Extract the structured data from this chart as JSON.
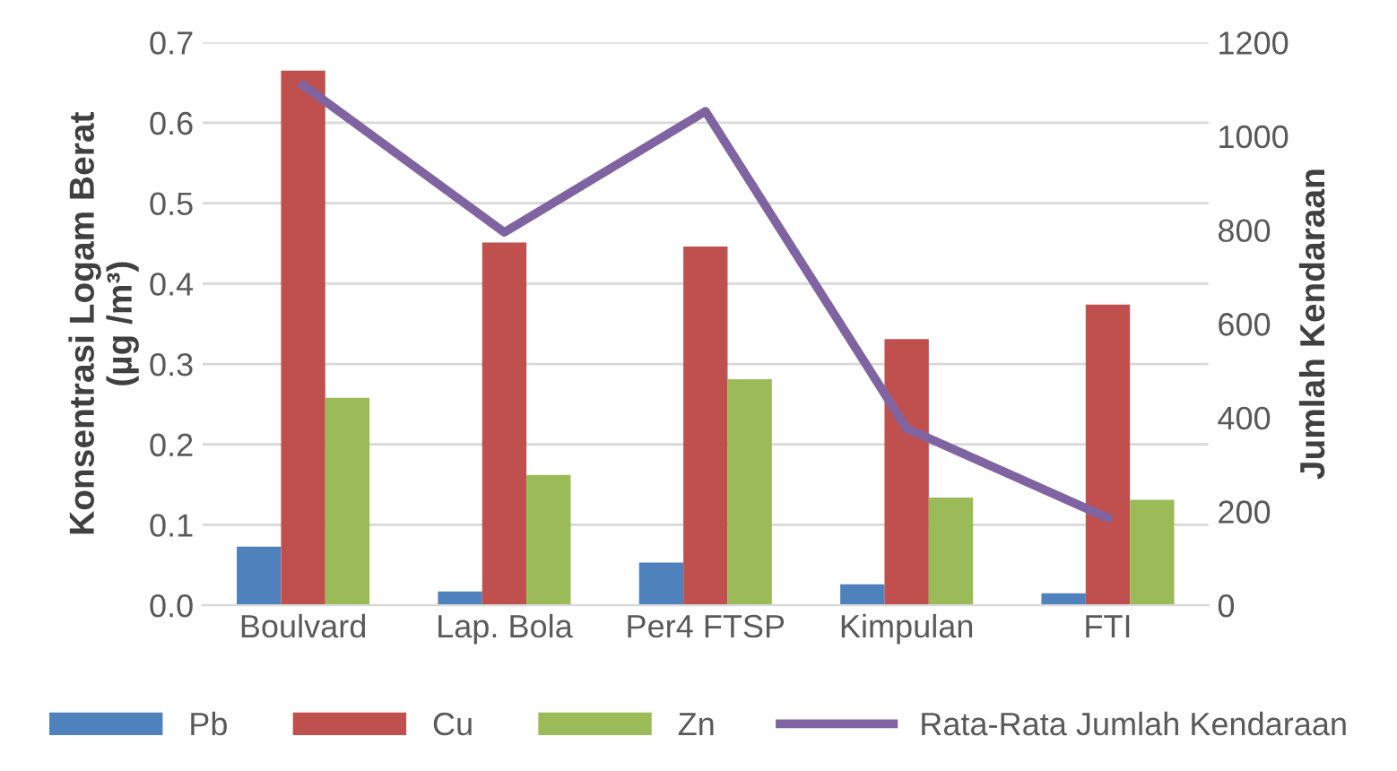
{
  "chart_data": {
    "type": "bar",
    "ylabel": "Konsentrasi Logam Berat\n(µg /m³)",
    "y2label": "Jumlah Kendaraan",
    "categories": [
      "Boulvard",
      "Lap. Bola",
      "Per4 FTSP",
      "Kimpulan",
      "FTI"
    ],
    "series": [
      {
        "name": "Pb",
        "color": "#4f81bd",
        "values": [
          0.073,
          0.017,
          0.053,
          0.026,
          0.015
        ]
      },
      {
        "name": "Cu",
        "color": "#c0504d",
        "values": [
          0.665,
          0.451,
          0.446,
          0.331,
          0.374
        ]
      },
      {
        "name": "Zn",
        "color": "#9bbb59",
        "values": [
          0.258,
          0.162,
          0.281,
          0.134,
          0.131
        ]
      },
      {
        "name": "Rata-Rata Jumlah Kendaraan",
        "color": "#8064a2",
        "type": "line",
        "axis": "y2",
        "values": [
          1109,
          795,
          1053,
          377,
          186
        ]
      }
    ],
    "ylim": [
      0,
      0.7
    ],
    "yticks": [
      {
        "value": 0,
        "label": "0.0"
      },
      0.1,
      0.2,
      0.3,
      0.4,
      0.5,
      0.6,
      0.7
    ],
    "y2lim": [
      0,
      1200
    ],
    "y2ticks": [
      0,
      200,
      400,
      600,
      800,
      1000,
      1200
    ],
    "grid": "y",
    "legend": "bottom",
    "marker": "none"
  }
}
